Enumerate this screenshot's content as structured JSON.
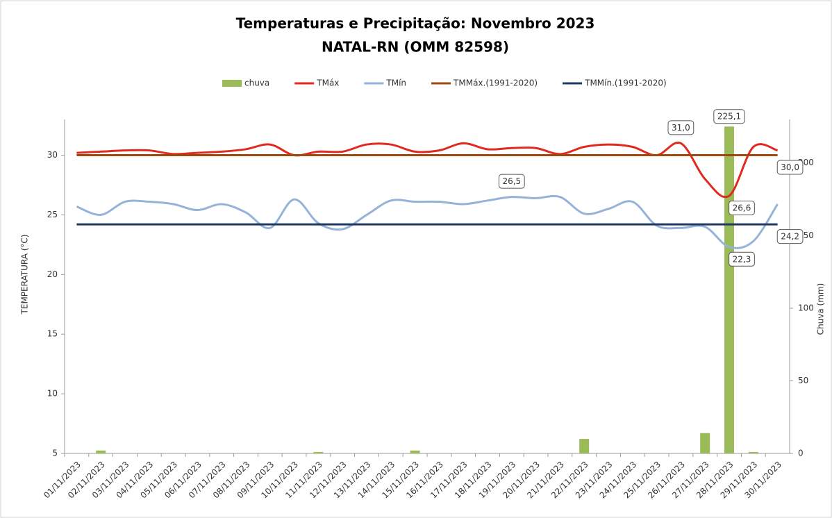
{
  "chart_data": {
    "type": "bar-line",
    "title": "Temperaturas e Precipitação: Novembro 2023",
    "subtitle": "NATAL-RN (OMM 82598)",
    "y_label": "TEMPERATURA (°C)",
    "y2_label": "Chuva (mm)",
    "categories": [
      "01/11/2023",
      "02/11/2023",
      "03/11/2023",
      "04/11/2023",
      "05/11/2023",
      "06/11/2023",
      "07/11/2023",
      "08/11/2023",
      "09/11/2023",
      "10/11/2023",
      "11/11/2023",
      "12/11/2023",
      "13/11/2023",
      "14/11/2023",
      "15/11/2023",
      "16/11/2023",
      "17/11/2023",
      "18/11/2023",
      "19/11/2023",
      "20/11/2023",
      "21/11/2023",
      "22/11/2023",
      "23/11/2023",
      "24/11/2023",
      "25/11/2023",
      "26/11/2023",
      "27/11/2023",
      "28/11/2023",
      "29/11/2023",
      "30/11/2023"
    ],
    "ylim": [
      5,
      33
    ],
    "yticks": [
      5,
      10,
      15,
      20,
      25,
      30
    ],
    "y2lim": [
      0,
      230
    ],
    "y2ticks": [
      0,
      50,
      100,
      150,
      200
    ],
    "series": [
      {
        "name": "chuva",
        "type": "bar",
        "axis": "y2",
        "color": "#9bbb59",
        "values": [
          0,
          2,
          0,
          0,
          0,
          0,
          0,
          0,
          0,
          0,
          1,
          0,
          0,
          0,
          2,
          0,
          0,
          0,
          0,
          0,
          0,
          10,
          0,
          0,
          0,
          0,
          14,
          225.1,
          1,
          0
        ],
        "value_labels": [
          null,
          null,
          null,
          null,
          null,
          null,
          null,
          null,
          null,
          null,
          null,
          null,
          null,
          null,
          null,
          null,
          null,
          null,
          null,
          null,
          null,
          null,
          null,
          null,
          null,
          null,
          null,
          "225,1",
          null,
          null
        ]
      },
      {
        "name": "TMáx",
        "type": "line",
        "color": "#e02a1f",
        "values": [
          30.2,
          30.3,
          30.4,
          30.4,
          30.1,
          30.2,
          30.3,
          30.5,
          30.9,
          30.0,
          30.3,
          30.3,
          30.9,
          30.9,
          30.3,
          30.4,
          31.0,
          30.5,
          30.6,
          30.6,
          30.1,
          30.7,
          30.9,
          30.7,
          30.0,
          31.0,
          28.0,
          26.6,
          30.7,
          30.4
        ],
        "value_labels": [
          null,
          null,
          null,
          null,
          null,
          null,
          null,
          null,
          null,
          null,
          null,
          null,
          null,
          null,
          null,
          null,
          null,
          null,
          null,
          null,
          null,
          null,
          null,
          null,
          null,
          "31,0",
          null,
          "26,6",
          null,
          null
        ]
      },
      {
        "name": "TMín",
        "type": "line",
        "color": "#95b3d7",
        "values": [
          25.7,
          25.0,
          26.1,
          26.1,
          25.9,
          25.4,
          25.9,
          25.2,
          23.9,
          26.3,
          24.3,
          23.8,
          25.0,
          26.2,
          26.1,
          26.1,
          25.9,
          26.2,
          26.5,
          26.4,
          26.5,
          25.1,
          25.5,
          26.1,
          24.1,
          23.9,
          24.0,
          22.3,
          22.8,
          25.9
        ],
        "value_labels": [
          null,
          null,
          null,
          null,
          null,
          null,
          null,
          null,
          null,
          null,
          null,
          null,
          null,
          null,
          null,
          null,
          null,
          null,
          "26,5",
          null,
          null,
          null,
          null,
          null,
          null,
          null,
          null,
          "22,3",
          null,
          null
        ]
      },
      {
        "name": "TMMáx.(1991-2020)",
        "type": "line",
        "color": "#9c4a10",
        "values": [
          30.0,
          30.0,
          30.0,
          30.0,
          30.0,
          30.0,
          30.0,
          30.0,
          30.0,
          30.0,
          30.0,
          30.0,
          30.0,
          30.0,
          30.0,
          30.0,
          30.0,
          30.0,
          30.0,
          30.0,
          30.0,
          30.0,
          30.0,
          30.0,
          30.0,
          30.0,
          30.0,
          30.0,
          30.0,
          30.0
        ],
        "value_labels": [
          null,
          null,
          null,
          null,
          null,
          null,
          null,
          null,
          null,
          null,
          null,
          null,
          null,
          null,
          null,
          null,
          null,
          null,
          null,
          null,
          null,
          null,
          null,
          null,
          null,
          null,
          null,
          null,
          null,
          "30,0"
        ]
      },
      {
        "name": "TMMín.(1991-2020)",
        "type": "line",
        "color": "#1f3864",
        "values": [
          24.2,
          24.2,
          24.2,
          24.2,
          24.2,
          24.2,
          24.2,
          24.2,
          24.2,
          24.2,
          24.2,
          24.2,
          24.2,
          24.2,
          24.2,
          24.2,
          24.2,
          24.2,
          24.2,
          24.2,
          24.2,
          24.2,
          24.2,
          24.2,
          24.2,
          24.2,
          24.2,
          24.2,
          24.2,
          24.2
        ],
        "value_labels": [
          null,
          null,
          null,
          null,
          null,
          null,
          null,
          null,
          null,
          null,
          null,
          null,
          null,
          null,
          null,
          null,
          null,
          null,
          null,
          null,
          null,
          null,
          null,
          null,
          null,
          null,
          null,
          null,
          null,
          "24,2"
        ]
      }
    ]
  }
}
